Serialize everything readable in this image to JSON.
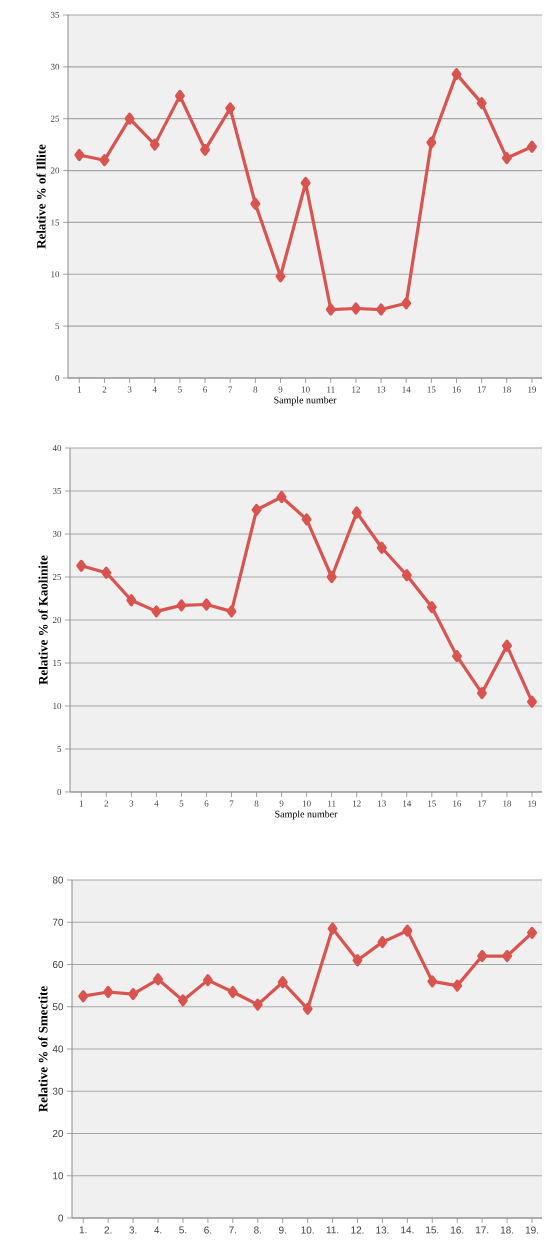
{
  "chart_data": [
    {
      "type": "line",
      "ylabel": "Relative % of Illite",
      "xlabel": "Sample number",
      "categories": [
        "1",
        "2",
        "3",
        "4",
        "5",
        "6",
        "7",
        "8",
        "9",
        "10",
        "11",
        "12",
        "13",
        "14",
        "15",
        "16",
        "17",
        "18",
        "19"
      ],
      "values": [
        21.5,
        21,
        25,
        22.5,
        27.2,
        22,
        26,
        16.8,
        9.8,
        18.8,
        6.6,
        6.7,
        6.6,
        7.2,
        22.7,
        29.3,
        26.5,
        21.2,
        22.3
      ],
      "color": "#d9534f",
      "ylim": [
        0,
        35
      ],
      "yticks": [
        0,
        5,
        10,
        15,
        20,
        25,
        30,
        35
      ],
      "grid": "y",
      "marker": "diamond",
      "line_style": "solid"
    },
    {
      "type": "line",
      "ylabel": "Relative % of Kaolinite",
      "xlabel": "Sample number",
      "categories": [
        "1",
        "2",
        "3",
        "4",
        "5",
        "6",
        "7",
        "8",
        "9",
        "10",
        "11",
        "12",
        "13",
        "14",
        "15",
        "16",
        "17",
        "18",
        "19"
      ],
      "values": [
        26.3,
        25.5,
        22.3,
        21,
        21.7,
        21.8,
        21,
        32.8,
        34.3,
        31.7,
        25,
        32.5,
        28.4,
        25.2,
        21.5,
        15.8,
        11.5,
        17,
        10.5
      ],
      "color": "#d9534f",
      "ylim": [
        0,
        40
      ],
      "yticks": [
        0,
        5,
        10,
        15,
        20,
        25,
        30,
        35,
        40
      ],
      "grid": "y",
      "marker": "diamond",
      "line_style": "solid"
    },
    {
      "type": "line",
      "ylabel": "Relative % of **Smectite**",
      "categories": [
        "1.",
        "2.",
        "3.",
        "4.",
        "5.",
        "6.",
        "7.",
        "8.",
        "9.",
        "10.",
        "11.",
        "12.",
        "13.",
        "14.",
        "15.",
        "16.",
        "17.",
        "18.",
        "19."
      ],
      "values": [
        52.5,
        53.5,
        53,
        56.5,
        51.5,
        56.3,
        53.5,
        50.5,
        55.8,
        49.5,
        68.5,
        61,
        65.3,
        68,
        56,
        55,
        62,
        62,
        67.5
      ],
      "color": "#d9534f",
      "ylim": [
        0,
        80
      ],
      "yticks": [
        0,
        10,
        20,
        30,
        40,
        50,
        60,
        70,
        80
      ],
      "grid": "y",
      "marker": "diamond",
      "line_style": "solid"
    }
  ]
}
